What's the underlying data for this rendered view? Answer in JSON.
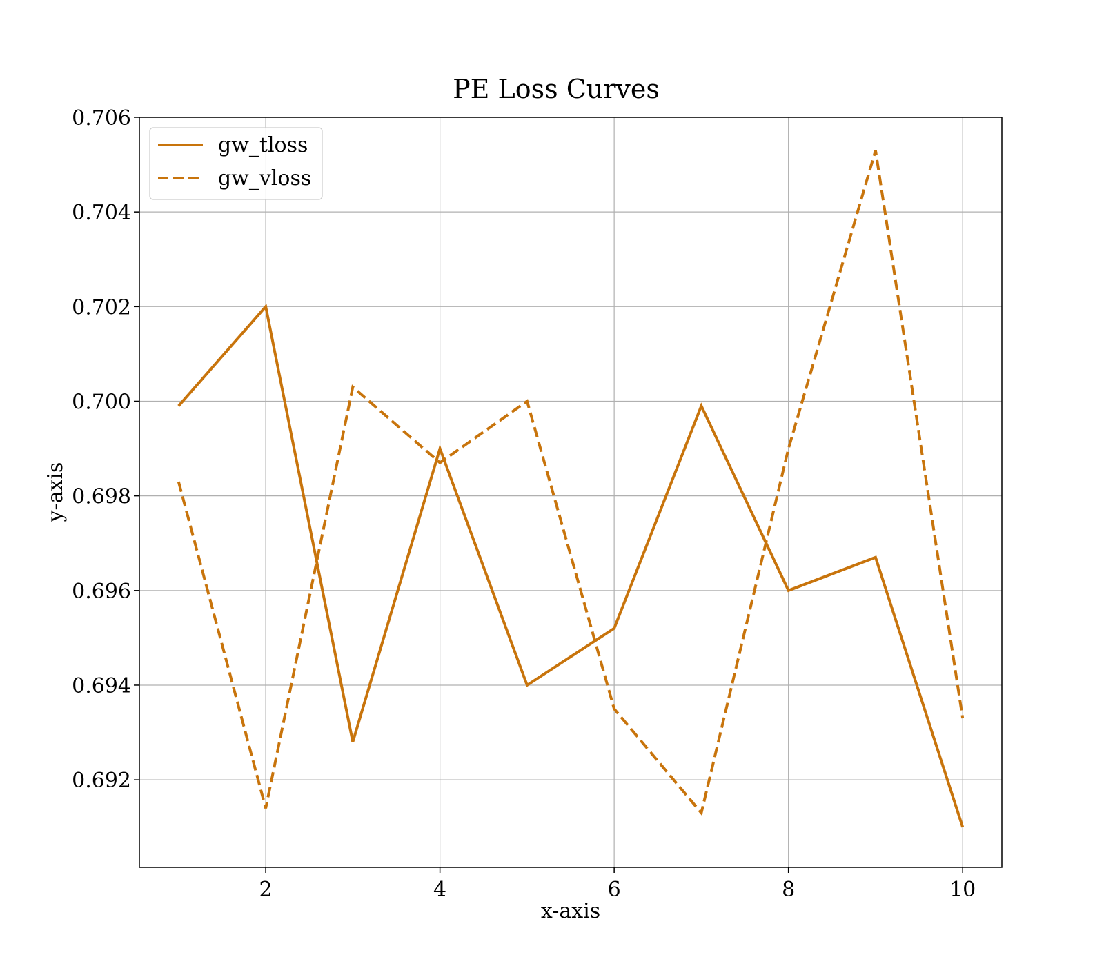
{
  "chart_data": {
    "type": "line",
    "title": "PE Loss Curves",
    "xlabel": "x-axis",
    "ylabel": "y-axis",
    "xlim": [
      0.55,
      10.45
    ],
    "ylim": [
      0.69015,
      0.706
    ],
    "xticks": [
      2,
      4,
      6,
      8,
      10
    ],
    "xtick_labels": [
      "2",
      "4",
      "6",
      "8",
      "10"
    ],
    "yticks": [
      0.692,
      0.694,
      0.696,
      0.698,
      0.7,
      0.702,
      0.704,
      0.706
    ],
    "ytick_labels": [
      "0.692",
      "0.694",
      "0.696",
      "0.698",
      "0.700",
      "0.702",
      "0.704",
      "0.706"
    ],
    "grid": true,
    "legend_position": "top-left",
    "x": [
      1,
      2,
      3,
      4,
      5,
      6,
      7,
      8,
      9,
      10
    ],
    "series": [
      {
        "name": "gw_tloss",
        "style": "solid",
        "color": "#c8740c",
        "values": [
          0.6999,
          0.702,
          0.6928,
          0.699,
          0.694,
          0.6952,
          0.6999,
          0.696,
          0.6967,
          0.691
        ]
      },
      {
        "name": "gw_vloss",
        "style": "dashed",
        "color": "#c8740c",
        "values": [
          0.6983,
          0.6914,
          0.7003,
          0.6987,
          0.7,
          0.6935,
          0.6913,
          0.699,
          0.7053,
          0.6933
        ]
      }
    ]
  }
}
